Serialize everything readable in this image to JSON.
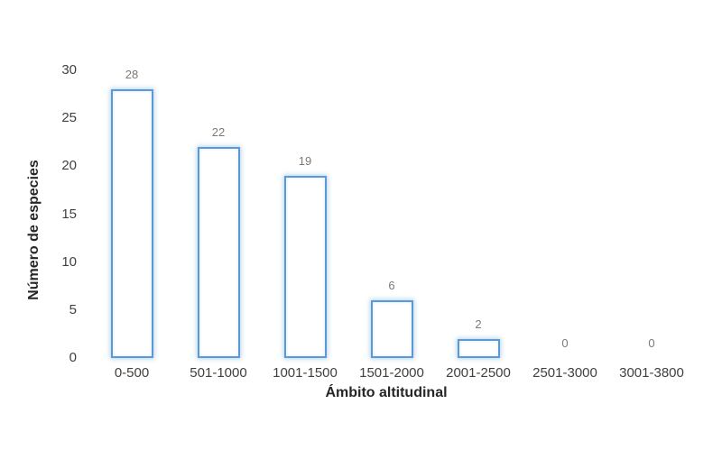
{
  "chart_data": {
    "type": "bar",
    "title": "",
    "categories": [
      "0-500",
      "501-1000",
      "1001-1500",
      "1501-2000",
      "2001-2500",
      "2501-3000",
      "3001-3800"
    ],
    "values": [
      28,
      22,
      19,
      6,
      2,
      0,
      0
    ],
    "xlabel": "Ámbito altitudinal",
    "ylabel": "Número de especies",
    "ylim": [
      0,
      30
    ],
    "yticks": [
      0,
      5,
      10,
      15,
      20,
      25,
      30
    ],
    "grid": false,
    "legend": false,
    "bar_fill_color": "#FFFFFF",
    "bar_border_color": "#5B9BD5",
    "bar_glow_color": "#BDD7EE",
    "value_label_color": "#7A7A7A",
    "tick_label_color": "#404040",
    "axis_title_color": "#262626",
    "background_color": "#FFFFFF"
  }
}
